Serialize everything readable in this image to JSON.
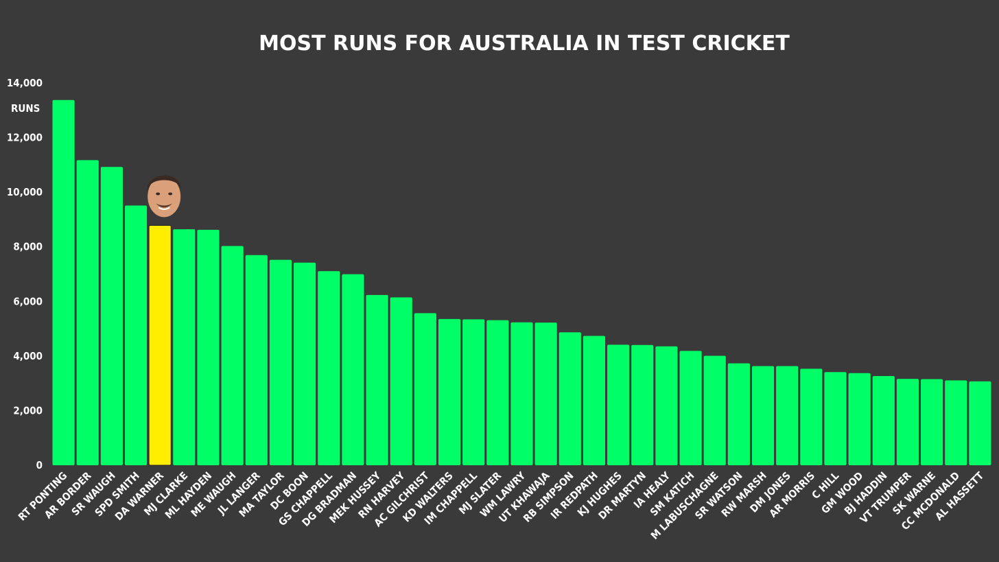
{
  "chart_data": {
    "type": "bar",
    "title": "MOST RUNS FOR AUSTRALIA IN TEST CRICKET",
    "ylabel": "RUNS",
    "xlabel": "",
    "ylim": [
      0,
      14000
    ],
    "yticks": [
      0,
      2000,
      4000,
      6000,
      8000,
      10000,
      12000,
      14000
    ],
    "ytick_labels": [
      "0",
      "2,000",
      "4,000",
      "6,000",
      "8,000",
      "10,000",
      "12,000",
      "14,000"
    ],
    "grid": false,
    "bar_color": "#00ff66",
    "highlight_color": "#ffee00",
    "highlight_category": "DA WARNER",
    "highlight_image": "player-headshot",
    "categories": [
      "RT PONTING",
      "AR BORDER",
      "SR WAUGH",
      "SPD SMITH",
      "DA WARNER",
      "MJ CLARKE",
      "ML HAYDEN",
      "ME WAUGH",
      "JL LANGER",
      "MA TAYLOR",
      "DC BOON",
      "GS CHAPPELL",
      "DG BRADMAN",
      "MEK HUSSEY",
      "RN HARVEY",
      "AC GILCHRIST",
      "KD WALTERS",
      "IM CHAPPELL",
      "MJ SLATER",
      "WM LAWRY",
      "UT KHAWAJA",
      "RB SIMPSON",
      "IR REDPATH",
      "KJ HUGHES",
      "DR MARTYN",
      "IA HEALY",
      "SM KATICH",
      "M LABUSCHAGNE",
      "SR WATSON",
      "RW MARSH",
      "DM JONES",
      "AR MORRIS",
      "C HILL",
      "GM WOOD",
      "BJ HADDIN",
      "VT TRUMPER",
      "SK WARNE",
      "CC MCDONALD",
      "AL HASSETT"
    ],
    "values": [
      13378,
      11174,
      10927,
      9514,
      8786,
      8643,
      8625,
      8029,
      7696,
      7525,
      7422,
      7110,
      6996,
      6235,
      6149,
      5570,
      5357,
      5345,
      5312,
      5234,
      5226,
      4869,
      4737,
      4415,
      4406,
      4356,
      4188,
      4009,
      3731,
      3633,
      3631,
      3533,
      3412,
      3374,
      3266,
      3163,
      3154,
      3107,
      3073
    ]
  }
}
